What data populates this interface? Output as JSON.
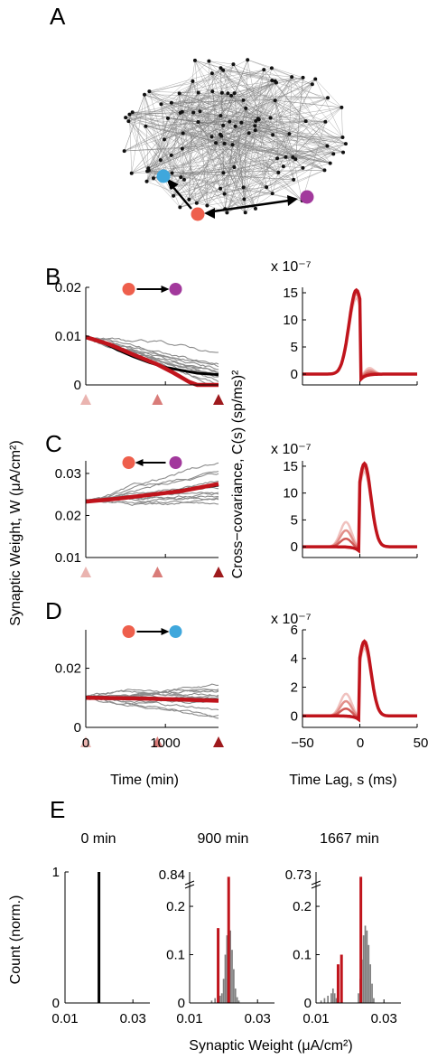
{
  "panel_labels": {
    "A": "A",
    "B": "B",
    "C": "C",
    "D": "D",
    "E": "E"
  },
  "colors": {
    "neuron_red": "#ee5f4c",
    "neuron_purple": "#a2399c",
    "neuron_blue": "#3fa7dc",
    "fit_red": "#c0141c",
    "trace_gray": "#8c8c8c",
    "mean_black": "#000000",
    "tri_light": "#eab4b0",
    "tri_mid": "#d97c79",
    "tri_dark": "#9e1a1d",
    "hist_gray": "#7f7f7f"
  },
  "network_icon": "random-network-graph",
  "left_column": {
    "ylabel": "Synaptic Weight, W (μA/cm²)",
    "xlabel": "Time (min)",
    "xticks": [
      "0",
      "1000"
    ]
  },
  "right_column": {
    "ylabel": "Cross−covariance, C(s) (sp/ms)²",
    "xlabel": "Time Lag, s (ms)",
    "xticks": [
      "−50",
      "0",
      "50"
    ],
    "multiplier": "x 10⁻⁷"
  },
  "hist_row": {
    "ylabel": "Count (norm.)",
    "xlabel": "Synaptic Weight (μA/cm²)",
    "titles": [
      "0 min",
      "900 min",
      "1667 min"
    ],
    "xticks": [
      "0.01",
      "0.03"
    ]
  },
  "chart_data": [
    {
      "panel": "B",
      "type": "line",
      "connection": "red-to-purple",
      "xlim": [
        0,
        1667
      ],
      "ylim": [
        0,
        0.02
      ],
      "yticks": [
        "0",
        "0.01",
        "0.02"
      ],
      "mean": [
        [
          0,
          0.0098
        ],
        [
          200,
          0.0088
        ],
        [
          400,
          0.0072
        ],
        [
          600,
          0.0058
        ],
        [
          800,
          0.0046
        ],
        [
          1000,
          0.0036
        ],
        [
          1200,
          0.003
        ],
        [
          1400,
          0.0024
        ],
        [
          1667,
          0.0021
        ]
      ],
      "fit": [
        [
          0,
          0.0098
        ],
        [
          300,
          0.0083
        ],
        [
          600,
          0.0062
        ],
        [
          900,
          0.0042
        ],
        [
          1100,
          0.0025
        ],
        [
          1300,
          0.0006
        ],
        [
          1400,
          0
        ],
        [
          1667,
          0
        ]
      ],
      "markers_min": [
        0,
        900,
        1667
      ]
    },
    {
      "panel": "B-cov",
      "type": "line",
      "xlim": [
        -50,
        50
      ],
      "ylim": [
        -2,
        16
      ],
      "yticks": [
        "0",
        "5",
        "10",
        "15"
      ],
      "peak": 15.5,
      "side": "pre"
    },
    {
      "panel": "C",
      "type": "line",
      "connection": "purple-to-red",
      "xlim": [
        0,
        1667
      ],
      "ylim": [
        0.01,
        0.033
      ],
      "yticks": [
        "0.01",
        "0.02",
        "0.03"
      ],
      "mean": [
        [
          0,
          0.0235
        ],
        [
          300,
          0.0238
        ],
        [
          600,
          0.0245
        ],
        [
          900,
          0.0252
        ],
        [
          1200,
          0.026
        ],
        [
          1500,
          0.0268
        ],
        [
          1667,
          0.0272
        ]
      ],
      "fit": [
        [
          0,
          0.0233
        ],
        [
          400,
          0.024
        ],
        [
          800,
          0.0249
        ],
        [
          1200,
          0.0258
        ],
        [
          1667,
          0.0275
        ]
      ],
      "markers_min": [
        0,
        900,
        1667
      ]
    },
    {
      "panel": "C-cov",
      "type": "line",
      "xlim": [
        -50,
        50
      ],
      "ylim": [
        -2,
        16
      ],
      "yticks": [
        "0",
        "5",
        "10",
        "15"
      ],
      "peak": 15.5,
      "side": "post"
    },
    {
      "panel": "D",
      "type": "line",
      "connection": "red-to-blue",
      "xlim": [
        0,
        1667
      ],
      "ylim": [
        0,
        0.033
      ],
      "yticks": [
        "0",
        "0.02"
      ],
      "mean": [
        [
          0,
          0.0102
        ],
        [
          400,
          0.0101
        ],
        [
          800,
          0.0099
        ],
        [
          1200,
          0.0096
        ],
        [
          1667,
          0.0093
        ]
      ],
      "fit": [
        [
          0,
          0.01
        ],
        [
          400,
          0.0099
        ],
        [
          800,
          0.0097
        ],
        [
          1200,
          0.0094
        ],
        [
          1667,
          0.009
        ]
      ],
      "markers_min": [
        0,
        900,
        1667
      ]
    },
    {
      "panel": "D-cov",
      "type": "line",
      "xlim": [
        -50,
        50
      ],
      "ylim": [
        -0.8,
        6
      ],
      "yticks": [
        "0",
        "2",
        "4",
        "6"
      ],
      "peak": 5.2,
      "side": "post"
    },
    {
      "panel": "E-0",
      "type": "bar",
      "title": "0 min",
      "xlim": [
        0.01,
        0.035
      ],
      "ylim": [
        0,
        1
      ],
      "yticks": [
        "0",
        "1"
      ],
      "spikes": [
        {
          "x": 0.02,
          "h": 1.0,
          "color": "black"
        }
      ]
    },
    {
      "panel": "E-900",
      "type": "bar",
      "title": "900 min",
      "xlim": [
        0.01,
        0.035
      ],
      "ylim": [
        0,
        0.84
      ],
      "yticks": [
        "0",
        "0.1",
        "0.2",
        "0.84"
      ],
      "hist_x": [
        0.0165,
        0.0175,
        0.0185,
        0.019,
        0.0195,
        0.02,
        0.0205,
        0.021,
        0.0215,
        0.022,
        0.0225,
        0.023,
        0.0235,
        0.024,
        0.0245
      ],
      "hist_h": [
        0.005,
        0.01,
        0.02,
        0.015,
        0.02,
        0.05,
        0.1,
        0.14,
        0.165,
        0.15,
        0.11,
        0.07,
        0.03,
        0.012,
        0.005
      ],
      "spikes": [
        {
          "x": 0.0184,
          "h": 0.155,
          "color": "red"
        },
        {
          "x": 0.0215,
          "h": 0.22,
          "color": "red"
        }
      ]
    },
    {
      "panel": "E-1667",
      "type": "bar",
      "title": "1667 min",
      "xlim": [
        0.01,
        0.035
      ],
      "ylim": [
        0,
        0.73
      ],
      "yticks": [
        "0",
        "0.1",
        "0.2",
        "0.73"
      ],
      "hist_x": [
        0.0115,
        0.0125,
        0.0135,
        0.0145,
        0.015,
        0.0155,
        0.016,
        0.0225,
        0.023,
        0.0235,
        0.024,
        0.0245,
        0.025,
        0.0255,
        0.026,
        0.0265,
        0.027
      ],
      "hist_h": [
        0.005,
        0.01,
        0.015,
        0.02,
        0.03,
        0.02,
        0.01,
        0.02,
        0.05,
        0.09,
        0.14,
        0.16,
        0.15,
        0.12,
        0.08,
        0.04,
        0.01
      ],
      "spikes": [
        {
          "x": 0.0165,
          "h": 0.08,
          "color": "red"
        },
        {
          "x": 0.0175,
          "h": 0.1,
          "color": "red"
        },
        {
          "x": 0.0232,
          "h": 0.22,
          "color": "red"
        }
      ]
    }
  ]
}
